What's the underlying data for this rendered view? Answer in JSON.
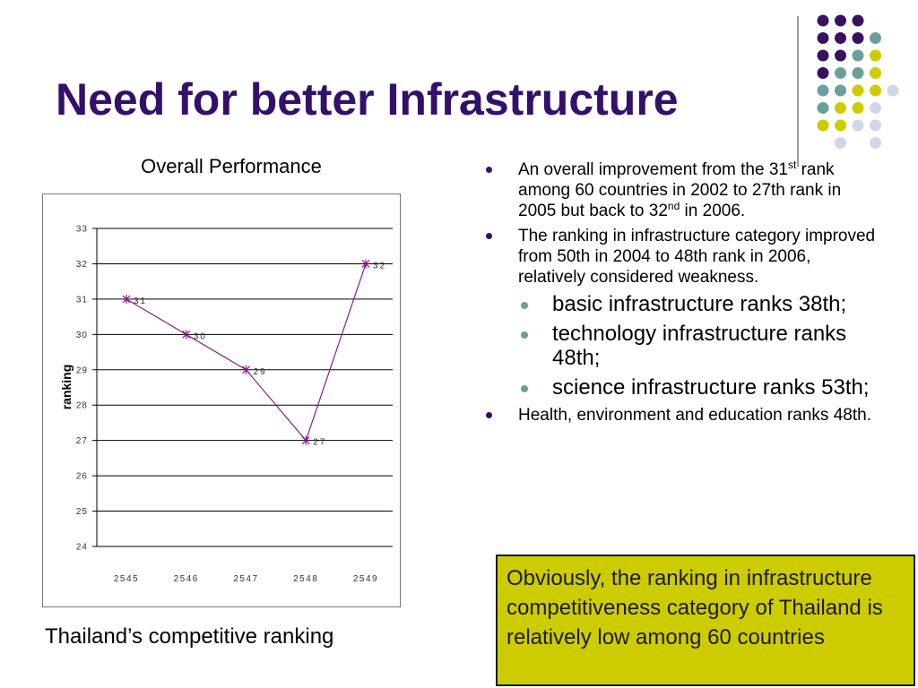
{
  "slide": {
    "title": "Need for better Infrastructure",
    "chart_heading": "Overall Performance",
    "caption": "Thailand’s competitive ranking"
  },
  "colors": {
    "title": "#33106a",
    "dot_purple": "#3b1060",
    "dot_teal": "#6d9e9e",
    "dot_yellow": "#cccc00",
    "dot_lavender": "#d4d4e8",
    "line": "#8b1a89",
    "callout": "#cccc00"
  },
  "chart_data": {
    "type": "line",
    "title": "Overall Performance",
    "ylabel": "ranking",
    "xlabel": "",
    "categories": [
      "2545",
      "2546",
      "2547",
      "2548",
      "2549"
    ],
    "series": [
      {
        "values": [
          31,
          30,
          29,
          27,
          32
        ],
        "data_labels": [
          "31",
          "30",
          "29",
          "27",
          "32"
        ]
      }
    ],
    "ylim": [
      24,
      33
    ],
    "yticks": [
      "24",
      "25",
      "26",
      "27",
      "28",
      "29",
      "30",
      "31",
      "32",
      "33"
    ],
    "grid": true
  },
  "bullets": {
    "b1_a": "An overall improvement from the 31",
    "b1_sup1": "st",
    "b1_b": " rank among 60 countries in 2002 to 27th rank in 2005 but back to 32",
    "b1_sup2": "nd",
    "b1_c": " in 2006.",
    "b2": "The ranking in infrastructure category improved from 50th in 2004 to 48th rank in 2006, relatively considered weakness.",
    "sub": [
      "basic infrastructure ranks 38th;",
      "technology infrastructure ranks 48th;",
      "science infrastructure ranks 53th;"
    ],
    "b3": "Health, environment and education ranks 48th."
  },
  "callout": {
    "text": "Obviously,  the ranking in infrastructure competitiveness category of Thailand is relatively low among 60 countries"
  }
}
